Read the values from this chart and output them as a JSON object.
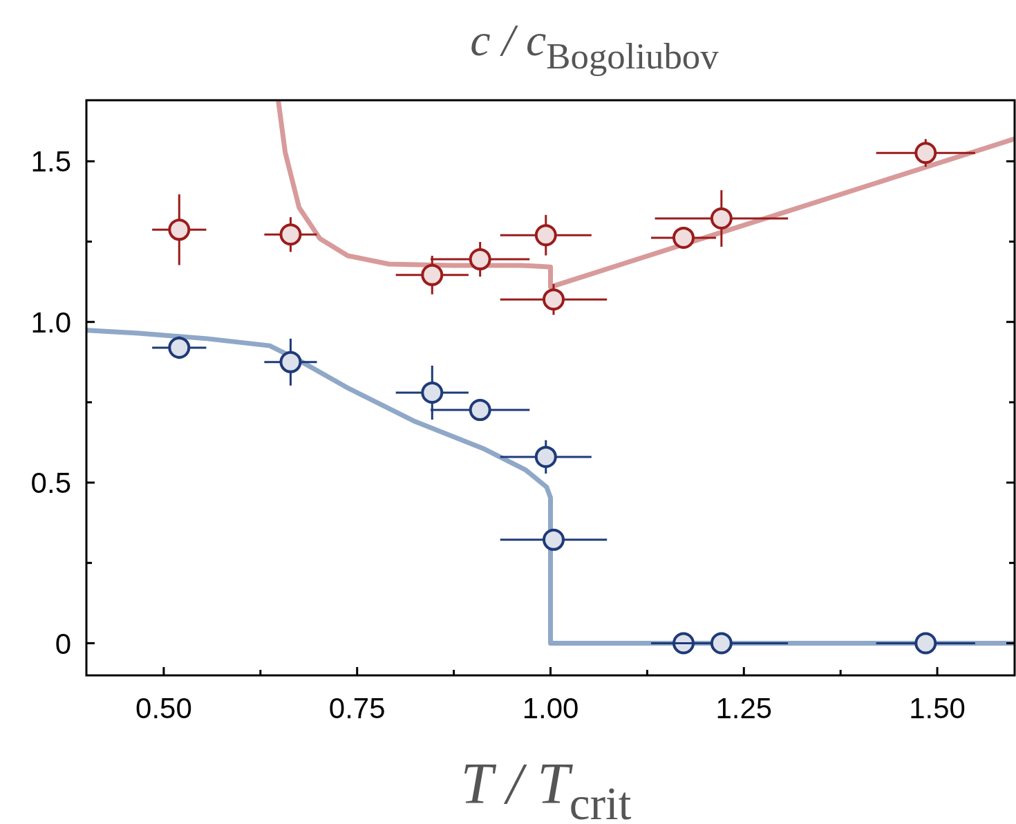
{
  "chart_data": {
    "type": "scatter",
    "title": "c / c$_{Bogoliubov}$",
    "xlabel": "T / T$_{crit}$",
    "xlim": [
      0.4,
      1.6
    ],
    "ylim": [
      -0.1,
      1.69
    ],
    "xticks": [
      {
        "value": 0.5,
        "label": "0.50"
      },
      {
        "value": 0.625,
        "label": null
      },
      {
        "value": 0.75,
        "label": "0.75"
      },
      {
        "value": 0.875,
        "label": null
      },
      {
        "value": 1,
        "label": "1.00"
      },
      {
        "value": 1.125,
        "label": null
      },
      {
        "value": 1.25,
        "label": "1.25"
      },
      {
        "value": 1.375,
        "label": null
      },
      {
        "value": 1.5,
        "label": "1.50"
      }
    ],
    "yticks": [
      0,
      {
        "value": 0.25,
        "label": null
      },
      0.5,
      {
        "value": 0.75,
        "label": null
      },
      {
        "value": 1,
        "label": "1.0"
      },
      {
        "value": 1.25,
        "label": null
      },
      1.5
    ],
    "marker": "circle",
    "line_style": "solid",
    "series": [
      {
        "type": "line",
        "marker": "none",
        "color": "#d89a9a",
        "x": [
          0.648,
          0.657,
          0.675,
          0.702,
          0.738,
          0.791,
          0.872,
          0.962,
          1.0,
          1.0,
          1.6
        ],
        "values": [
          1.69,
          1.528,
          1.356,
          1.259,
          1.206,
          1.18,
          1.176,
          1.176,
          1.171,
          1.109,
          1.57
        ]
      },
      {
        "type": "line",
        "marker": "none",
        "color": "#8fa8c8",
        "x": [
          0.4,
          0.467,
          0.556,
          0.637,
          0.673,
          0.736,
          0.825,
          0.915,
          0.968,
          0.995,
          1.0,
          1.0,
          1.6
        ],
        "values": [
          0.974,
          0.965,
          0.948,
          0.926,
          0.883,
          0.797,
          0.69,
          0.604,
          0.539,
          0.486,
          0.453,
          0,
          0
        ]
      },
      {
        "color": "#9b1c1c",
        "x": [
          0.52,
          0.664,
          0.847,
          0.909,
          0.994,
          1.004,
          1.172,
          1.221,
          1.485
        ],
        "values": [
          1.287,
          1.272,
          1.146,
          1.195,
          1.27,
          1.07,
          1.262,
          1.322,
          1.526
        ],
        "errors": [
          0.11,
          0.054,
          0.06,
          0.054,
          0.063,
          0.048,
          null,
          0.088,
          0.043
        ],
        "xerrors": [
          0.035,
          0.034,
          0.047,
          0.064,
          0.059,
          0.069,
          0.042,
          0.086,
          0.064
        ]
      },
      {
        "color": "#1e3a78",
        "x": [
          0.52,
          0.664,
          0.847,
          0.909,
          0.994,
          1.004,
          1.172,
          1.221,
          1.485
        ],
        "values": [
          0.92,
          0.875,
          0.78,
          0.726,
          0.58,
          0.322,
          0,
          0,
          0
        ],
        "errors": [
          0.035,
          0.073,
          0.084,
          null,
          0.052,
          null,
          null,
          null,
          null
        ],
        "xerrors": [
          0.035,
          0.034,
          0.047,
          0.064,
          0.059,
          0.069,
          0.042,
          0.086,
          0.064
        ]
      }
    ]
  }
}
